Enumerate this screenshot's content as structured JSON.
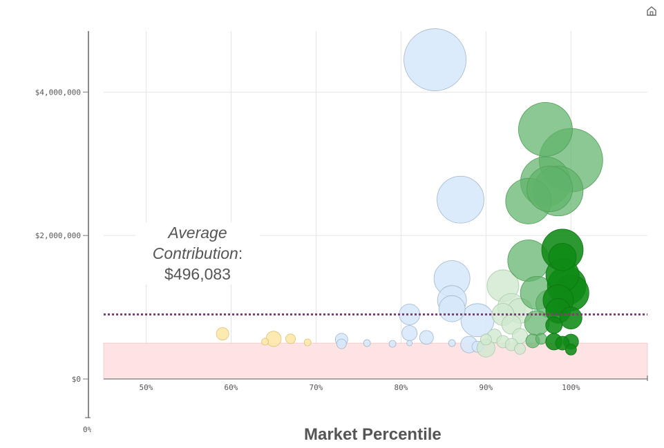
{
  "toolbar": {
    "home_icon": "home-icon"
  },
  "annotation": {
    "avg_word": "Average",
    "contribution_word": "Contribution",
    "colon": ":",
    "value": "$496,083"
  },
  "stub_label": "0%",
  "chart_data": {
    "type": "scatter",
    "variant": "bubble",
    "xlabel": "Market Percentile",
    "ylabel": "",
    "xlim": [
      45,
      109
    ],
    "ylim": [
      -250000,
      4850000
    ],
    "x_ticks": [
      {
        "value": 50,
        "label": "50%"
      },
      {
        "value": 60,
        "label": "60%"
      },
      {
        "value": 70,
        "label": "70%"
      },
      {
        "value": 80,
        "label": "80%"
      },
      {
        "value": 90,
        "label": "90%"
      },
      {
        "value": 100,
        "label": "100%"
      }
    ],
    "y_ticks": [
      {
        "value": 0,
        "label": "$0"
      },
      {
        "value": 2000000,
        "label": "$2,000,000"
      },
      {
        "value": 4000000,
        "label": "$4,000,000"
      }
    ],
    "grid": true,
    "reference_line": {
      "value": 900000,
      "style": "dotted",
      "color": "#7b3f7a"
    },
    "shaded_band": {
      "from": 0,
      "to": 500000,
      "color": "#fde3e3"
    },
    "colors": {
      "yellow": "#fde8a8",
      "lightblue": "#d6e8fa",
      "lightgreen": "#cfe8cf",
      "midgreen": "#5fb36a",
      "darkgreen": "#0f8a16"
    },
    "points": [
      {
        "x": 59,
        "y": 630000,
        "size": 9,
        "group": "yellow"
      },
      {
        "x": 64,
        "y": 520000,
        "size": 5,
        "group": "yellow"
      },
      {
        "x": 65,
        "y": 560000,
        "size": 11,
        "group": "yellow"
      },
      {
        "x": 67,
        "y": 560000,
        "size": 7,
        "group": "yellow"
      },
      {
        "x": 69,
        "y": 510000,
        "size": 5,
        "group": "yellow"
      },
      {
        "x": 73,
        "y": 550000,
        "size": 9,
        "group": "lightblue"
      },
      {
        "x": 73,
        "y": 490000,
        "size": 7,
        "group": "lightblue"
      },
      {
        "x": 76,
        "y": 500000,
        "size": 5,
        "group": "lightblue"
      },
      {
        "x": 79,
        "y": 490000,
        "size": 5,
        "group": "lightblue"
      },
      {
        "x": 81,
        "y": 900000,
        "size": 15,
        "group": "lightblue"
      },
      {
        "x": 81,
        "y": 640000,
        "size": 11,
        "group": "lightblue"
      },
      {
        "x": 81,
        "y": 500000,
        "size": 4,
        "group": "lightblue"
      },
      {
        "x": 83,
        "y": 580000,
        "size": 10,
        "group": "lightblue"
      },
      {
        "x": 84,
        "y": 4450000,
        "size": 45,
        "group": "lightblue"
      },
      {
        "x": 86,
        "y": 1400000,
        "size": 26,
        "group": "lightblue"
      },
      {
        "x": 86,
        "y": 1100000,
        "size": 21,
        "group": "lightblue"
      },
      {
        "x": 86,
        "y": 980000,
        "size": 19,
        "group": "lightblue"
      },
      {
        "x": 86,
        "y": 500000,
        "size": 5,
        "group": "lightblue"
      },
      {
        "x": 87,
        "y": 2500000,
        "size": 34,
        "group": "lightblue"
      },
      {
        "x": 88,
        "y": 480000,
        "size": 12,
        "group": "lightblue"
      },
      {
        "x": 89,
        "y": 820000,
        "size": 24,
        "group": "lightblue"
      },
      {
        "x": 89,
        "y": 450000,
        "size": 8,
        "group": "lightblue"
      },
      {
        "x": 90,
        "y": 430000,
        "size": 13,
        "group": "lightgreen"
      },
      {
        "x": 90,
        "y": 550000,
        "size": 8,
        "group": "lightgreen"
      },
      {
        "x": 91,
        "y": 600000,
        "size": 10,
        "group": "lightgreen"
      },
      {
        "x": 92,
        "y": 900000,
        "size": 16,
        "group": "lightgreen"
      },
      {
        "x": 92,
        "y": 520000,
        "size": 9,
        "group": "lightgreen"
      },
      {
        "x": 92,
        "y": 1300000,
        "size": 23,
        "group": "lightgreen"
      },
      {
        "x": 93,
        "y": 1000000,
        "size": 20,
        "group": "lightgreen"
      },
      {
        "x": 93,
        "y": 760000,
        "size": 14,
        "group": "lightgreen"
      },
      {
        "x": 93,
        "y": 480000,
        "size": 9,
        "group": "lightgreen"
      },
      {
        "x": 94,
        "y": 950000,
        "size": 18,
        "group": "lightgreen"
      },
      {
        "x": 94,
        "y": 600000,
        "size": 11,
        "group": "lightgreen"
      },
      {
        "x": 94,
        "y": 420000,
        "size": 8,
        "group": "lightgreen"
      },
      {
        "x": 95,
        "y": 1650000,
        "size": 30,
        "group": "midgreen"
      },
      {
        "x": 95,
        "y": 2480000,
        "size": 33,
        "group": "midgreen"
      },
      {
        "x": 96,
        "y": 1200000,
        "size": 24,
        "group": "midgreen"
      },
      {
        "x": 96,
        "y": 780000,
        "size": 18,
        "group": "midgreen"
      },
      {
        "x": 95.5,
        "y": 530000,
        "size": 10,
        "group": "midgreen"
      },
      {
        "x": 96.5,
        "y": 560000,
        "size": 8,
        "group": "midgreen"
      },
      {
        "x": 97,
        "y": 3480000,
        "size": 39,
        "group": "midgreen"
      },
      {
        "x": 97,
        "y": 2750000,
        "size": 36,
        "group": "midgreen"
      },
      {
        "x": 97.5,
        "y": 2650000,
        "size": 33,
        "group": "midgreen"
      },
      {
        "x": 97.5,
        "y": 1050000,
        "size": 20,
        "group": "midgreen"
      },
      {
        "x": 98.5,
        "y": 2620000,
        "size": 36,
        "group": "midgreen"
      },
      {
        "x": 100,
        "y": 3050000,
        "size": 46,
        "group": "midgreen"
      },
      {
        "x": 99,
        "y": 1800000,
        "size": 30,
        "group": "darkgreen"
      },
      {
        "x": 99,
        "y": 1700000,
        "size": 20,
        "group": "darkgreen"
      },
      {
        "x": 99,
        "y": 1450000,
        "size": 24,
        "group": "darkgreen"
      },
      {
        "x": 99.5,
        "y": 1300000,
        "size": 28,
        "group": "darkgreen"
      },
      {
        "x": 100,
        "y": 1200000,
        "size": 26,
        "group": "darkgreen"
      },
      {
        "x": 98.5,
        "y": 1100000,
        "size": 22,
        "group": "darkgreen"
      },
      {
        "x": 98.5,
        "y": 950000,
        "size": 18,
        "group": "darkgreen"
      },
      {
        "x": 100,
        "y": 850000,
        "size": 16,
        "group": "darkgreen"
      },
      {
        "x": 98,
        "y": 750000,
        "size": 12,
        "group": "darkgreen"
      },
      {
        "x": 98,
        "y": 520000,
        "size": 12,
        "group": "darkgreen"
      },
      {
        "x": 99,
        "y": 500000,
        "size": 10,
        "group": "darkgreen"
      },
      {
        "x": 100,
        "y": 520000,
        "size": 11,
        "group": "darkgreen"
      },
      {
        "x": 100,
        "y": 410000,
        "size": 8,
        "group": "darkgreen"
      }
    ]
  }
}
